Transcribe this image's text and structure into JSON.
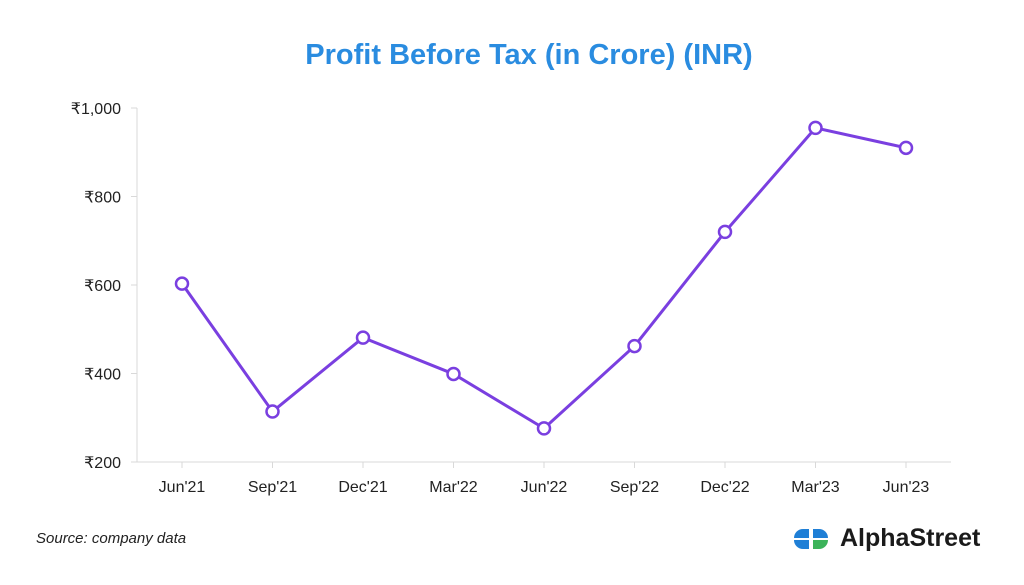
{
  "chart_data": {
    "type": "line",
    "title": "Profit Before Tax (in Crore) (INR)",
    "xlabel": "",
    "ylabel": "",
    "categories": [
      "Jun'21",
      "Sep'21",
      "Dec'21",
      "Mar'22",
      "Jun'22",
      "Sep'22",
      "Dec'22",
      "Mar'23",
      "Jun'23"
    ],
    "series": [
      {
        "values": [
          603,
          314,
          481,
          399,
          276,
          462,
          720,
          955,
          910
        ]
      }
    ],
    "ylim": [
      200,
      1000
    ],
    "yticks": [
      "₹200",
      "₹400",
      "₹600",
      "₹800",
      "₹1,000"
    ],
    "ytick_values": [
      200,
      400,
      600,
      800,
      1000
    ],
    "grid": false,
    "line_color": "#7a3fe0",
    "title_color": "#2a8ce0"
  },
  "footer": {
    "source": "Source: company data",
    "brand": "AlphaStreet",
    "brand_icon": "alphastreet-logo-icon"
  }
}
